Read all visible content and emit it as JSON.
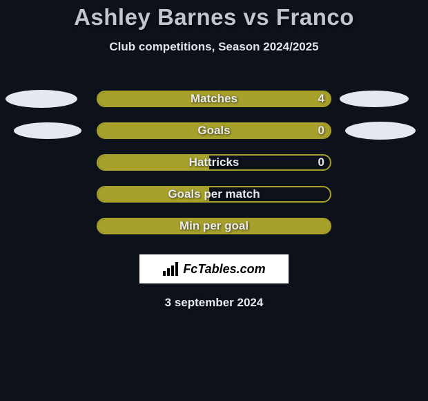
{
  "title": "Ashley Barnes vs Franco",
  "subtitle": "Club competitions, Season 2024/2025",
  "date": "3 september 2024",
  "colors": {
    "background": "#0d111a",
    "bar_fill": "#a7a12c",
    "bar_border": "#a7a12c",
    "text": "#e8eaf0",
    "title": "#c0c6d0",
    "ellipse": "#e6e8ef",
    "logo_bg": "#ffffff"
  },
  "rows": [
    {
      "label": "Matches",
      "left_value": "",
      "right_value": "4",
      "fill_mode": "full",
      "fill_pct": 100,
      "left_ellipse": "outer",
      "right_ellipse": "outer"
    },
    {
      "label": "Goals",
      "left_value": "",
      "right_value": "0",
      "fill_mode": "full",
      "fill_pct": 100,
      "left_ellipse": "inner",
      "right_ellipse": "inner"
    },
    {
      "label": "Hattricks",
      "left_value": "",
      "right_value": "0",
      "fill_mode": "left",
      "fill_pct": 48,
      "left_ellipse": "none",
      "right_ellipse": "none"
    },
    {
      "label": "Goals per match",
      "left_value": "",
      "right_value": "",
      "fill_mode": "left",
      "fill_pct": 48,
      "left_ellipse": "none",
      "right_ellipse": "none"
    },
    {
      "label": "Min per goal",
      "left_value": "",
      "right_value": "",
      "fill_mode": "full",
      "fill_pct": 100,
      "left_ellipse": "none",
      "right_ellipse": "none"
    }
  ],
  "logo": {
    "text": "FcTables.com"
  }
}
